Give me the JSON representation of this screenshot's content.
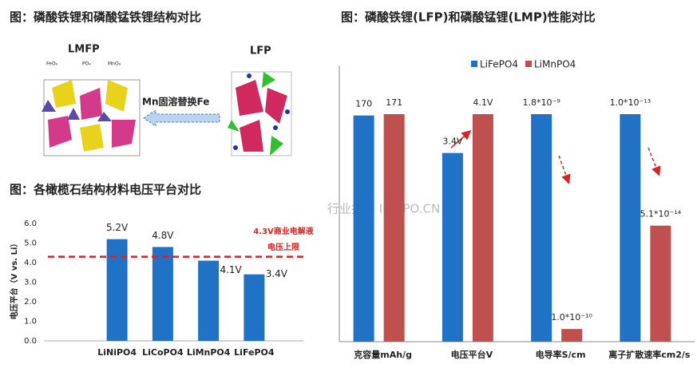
{
  "structure": {
    "title": "图：磷酸铁锂和磷酸锰铁锂结构对比",
    "lmfp_label": "LMFP",
    "lfp_label": "LFP",
    "arrow_label": "Mn固溶替换Fe",
    "legend": [
      "FeO₆",
      "PO₄",
      "MnO₆"
    ]
  },
  "watermark": "行业报告 IPOIPO.CN",
  "chart_data": [
    {
      "type": "bar",
      "title": "图：各橄榄石结构材料电压平台对比",
      "y_label": "电压平台（V vs. Li）",
      "categories": [
        "LiNiPO4",
        "LiCoPO4",
        "LiMnPO4",
        "LiFePO4"
      ],
      "values": [
        5.2,
        4.8,
        4.1,
        3.4
      ],
      "value_labels": [
        "5.2V",
        "4.8V",
        "4.1V",
        "3.4V"
      ],
      "color": "#1f72c6",
      "ylim": [
        0,
        6
      ],
      "yticks": [
        {
          "value": 0,
          "label": "0.0"
        },
        {
          "value": 1,
          "label": "1.0"
        },
        {
          "value": 2,
          "label": "2.0"
        },
        {
          "value": 3,
          "label": "3.0"
        },
        {
          "value": 4,
          "label": "4.0"
        },
        {
          "value": 5,
          "label": "5.0"
        },
        {
          "value": 6,
          "label": "6.0"
        }
      ],
      "reference_line": {
        "value": 4.3,
        "color": "#e02020",
        "label": [
          "4.3V商业电解液",
          "电压上限"
        ]
      }
    },
    {
      "type": "grouped_bar",
      "title": "图：磷酸铁锂(LFP)和磷酸锰锂(LMP)性能对比",
      "categories": [
        "克容量mAh/g",
        "电压平台V",
        "电导率S/cm",
        "离子扩散速率cm2/s"
      ],
      "series": [
        {
          "name": "LiFePO4",
          "color": "#1f72c6",
          "values": [
            170,
            3.4,
            1.8e-09,
            1e-13
          ],
          "value_labels": [
            "170",
            "3.4V",
            "1.8*10⁻⁹",
            "1.0*10⁻¹³"
          ]
        },
        {
          "name": "LiMnPO4",
          "color": "#c0504d",
          "values": [
            171,
            4.1,
            1e-10,
            5.1e-14
          ],
          "value_labels": [
            "171",
            "4.1V",
            "1.0*10⁻¹⁰",
            "5.1*10⁻¹⁴"
          ]
        }
      ]
    }
  ]
}
